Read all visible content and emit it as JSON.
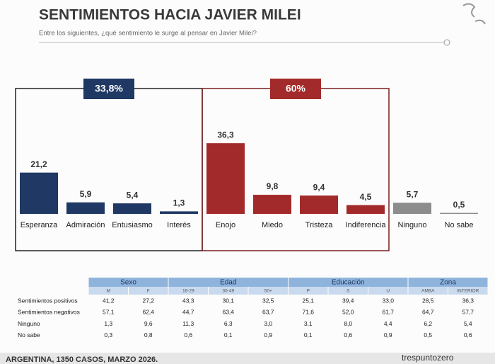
{
  "chart_data": {
    "type": "bar",
    "title": "SENTIMIENTOS HACIA JAVIER MILEI",
    "subtitle": "Entre los siguientes, ¿qué sentimiento le surge al pensar en Javier Milei?",
    "categories": [
      "Esperanza",
      "Admiración",
      "Entusiasmo",
      "Interés",
      "Enojo",
      "Miedo",
      "Tristeza",
      "Indiferencia",
      "Ninguno",
      "No sabe"
    ],
    "values": [
      21.2,
      5.9,
      5.4,
      1.3,
      36.3,
      9.8,
      9.4,
      4.5,
      5.7,
      0.5
    ],
    "value_labels": [
      "21,2",
      "5,9",
      "5,4",
      "1,3",
      "36,3",
      "9,8",
      "9,4",
      "4,5",
      "5,7",
      "0,5"
    ],
    "colors": [
      "#1f3864",
      "#1f3864",
      "#1f3864",
      "#1f3864",
      "#a32a2a",
      "#a32a2a",
      "#a32a2a",
      "#a32a2a",
      "#8c8c8c",
      "#8c8c8c"
    ],
    "groups": [
      {
        "label": "33,8%",
        "color": "#1f3864",
        "border": "#222222",
        "count": 4
      },
      {
        "label": "60%",
        "color": "#a32a2a",
        "border": "#7a1f1f",
        "count": 4
      }
    ]
  },
  "table": {
    "groups": [
      {
        "label": "Sexo",
        "span": 2
      },
      {
        "label": "Edad",
        "span": 3
      },
      {
        "label": "Educación",
        "span": 3
      },
      {
        "label": "Zona",
        "span": 2
      }
    ],
    "columns": [
      "M",
      "F",
      "16-29",
      "30-49",
      "50+",
      "P",
      "S",
      "U",
      "AMBA",
      "INTERIOR"
    ],
    "rows": [
      {
        "label": "Sentimientos positivos",
        "cells": [
          "41,2",
          "27,2",
          "43,3",
          "30,1",
          "32,5",
          "25,1",
          "39,4",
          "33,0",
          "28,5",
          "36,3"
        ]
      },
      {
        "label": "Sentimientos negativos",
        "cells": [
          "57,1",
          "62,4",
          "44,7",
          "63,4",
          "63,7",
          "71,6",
          "52,0",
          "61,7",
          "64,7",
          "57,7"
        ]
      },
      {
        "label": "Ninguno",
        "cells": [
          "1,3",
          "9,6",
          "11,3",
          "6,3",
          "3,0",
          "3,1",
          "8,0",
          "4,4",
          "6,2",
          "5,4"
        ]
      },
      {
        "label": "No sabe",
        "cells": [
          "0,3",
          "0,8",
          "0,6",
          "0,1",
          "0,9",
          "0,1",
          "0,6",
          "0,9",
          "0,5",
          "0,6"
        ]
      }
    ]
  },
  "footer": {
    "source": "ARGENTINA, 1350 CASOS, MARZO 2026.",
    "logo": "trespuntozero"
  }
}
